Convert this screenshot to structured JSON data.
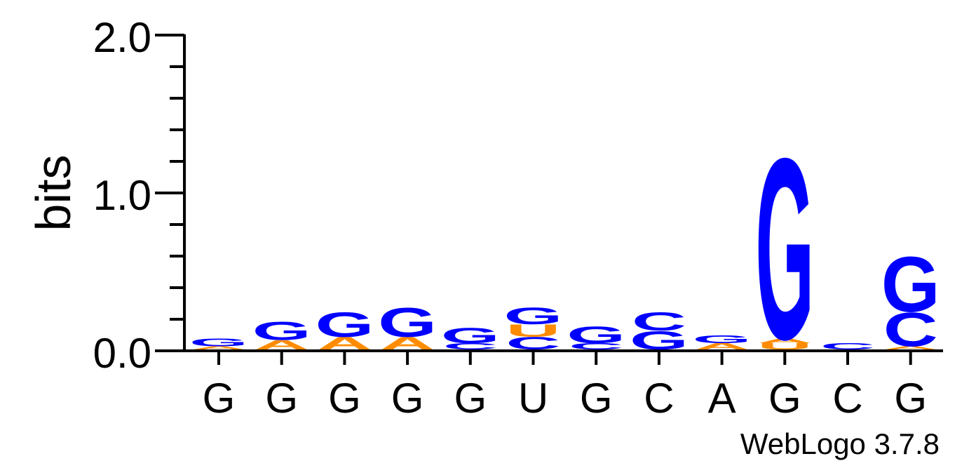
{
  "chart_data": {
    "type": "sequence-logo",
    "ylabel": "bits",
    "ylim": [
      0,
      2.0
    ],
    "yticks": [
      {
        "value": 0.0,
        "label": "0.0"
      },
      {
        "value": 1.0,
        "label": "1.0"
      },
      {
        "value": 2.0,
        "label": "2.0"
      }
    ],
    "positions": [
      {
        "label": "G",
        "stack": [
          {
            "letter": "A",
            "height": 0.02
          },
          {
            "letter": "G",
            "height": 0.05
          }
        ]
      },
      {
        "label": "G",
        "stack": [
          {
            "letter": "A",
            "height": 0.06
          },
          {
            "letter": "G",
            "height": 0.12
          }
        ]
      },
      {
        "label": "G",
        "stack": [
          {
            "letter": "A",
            "height": 0.08
          },
          {
            "letter": "G",
            "height": 0.16
          }
        ]
      },
      {
        "label": "G",
        "stack": [
          {
            "letter": "A",
            "height": 0.08
          },
          {
            "letter": "G",
            "height": 0.19
          }
        ]
      },
      {
        "label": "G",
        "stack": [
          {
            "letter": "C",
            "height": 0.04
          },
          {
            "letter": "G",
            "height": 0.1
          }
        ]
      },
      {
        "label": "U",
        "stack": [
          {
            "letter": "C",
            "height": 0.08
          },
          {
            "letter": "U",
            "height": 0.08
          },
          {
            "letter": "G",
            "height": 0.11
          }
        ]
      },
      {
        "label": "G",
        "stack": [
          {
            "letter": "C",
            "height": 0.04
          },
          {
            "letter": "G",
            "height": 0.11
          }
        ]
      },
      {
        "label": "C",
        "stack": [
          {
            "letter": "G",
            "height": 0.12
          },
          {
            "letter": "C",
            "height": 0.12
          }
        ]
      },
      {
        "label": "A",
        "stack": [
          {
            "letter": "A",
            "height": 0.04
          },
          {
            "letter": "G",
            "height": 0.05
          }
        ]
      },
      {
        "label": "G",
        "stack": [
          {
            "letter": "U",
            "height": 0.04
          },
          {
            "letter": "A",
            "height": 0.03
          },
          {
            "letter": "G",
            "height": 1.18
          }
        ]
      },
      {
        "label": "C",
        "stack": [
          {
            "letter": "C",
            "height": 0.04
          }
        ]
      },
      {
        "label": "G",
        "stack": [
          {
            "letter": "A",
            "height": 0.02
          },
          {
            "letter": "C",
            "height": 0.22
          },
          {
            "letter": "G",
            "height": 0.36
          }
        ]
      }
    ],
    "colors": {
      "G": "#0000ff",
      "C": "#0000ff",
      "A": "#ff8c00",
      "U": "#ff8c00"
    },
    "grid": false
  },
  "footer": {
    "text": "WebLogo 3.7.8"
  }
}
